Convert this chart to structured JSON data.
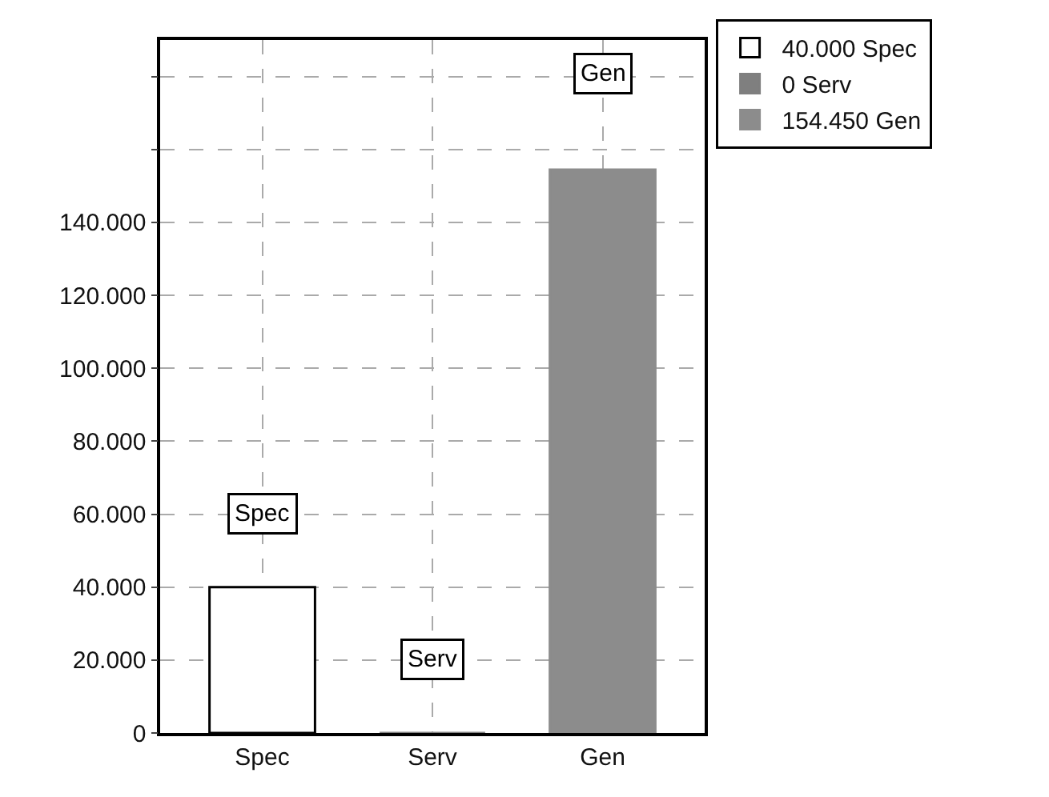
{
  "chart_data": {
    "type": "bar",
    "categories": [
      "Spec",
      "Serv",
      "Gen"
    ],
    "series": [
      {
        "name": "40.000 Spec",
        "color": "#ffffff",
        "values": [
          40000,
          null,
          null
        ]
      },
      {
        "name": "0 Serv",
        "color": "#7f7f7f",
        "values": [
          null,
          0,
          null
        ]
      },
      {
        "name": "154.450 Gen",
        "color": "#8c8c8c",
        "values": [
          null,
          null,
          154450
        ]
      }
    ],
    "ylim": [
      0,
      190000
    ],
    "yticks": [
      0,
      {
        "value": 20000,
        "label": "20.000"
      },
      {
        "value": 40000,
        "label": "40.000"
      },
      {
        "value": 60000,
        "label": "60.000"
      },
      {
        "value": 80000,
        "label": "80.000"
      },
      {
        "value": 100000,
        "label": "100.000"
      },
      {
        "value": 120000,
        "label": "120.000"
      },
      {
        "value": 140000,
        "label": "140.000"
      },
      {
        "value": 160000,
        "label": null
      },
      {
        "value": 180000,
        "label": null
      }
    ],
    "annotations": [
      {
        "text": "Spec",
        "x": "Spec",
        "y": 60000
      },
      {
        "text": "Serv",
        "x": "Serv",
        "y": 20000
      },
      {
        "text": "Gen",
        "x": "Gen",
        "y": 181000
      }
    ],
    "grid": true,
    "legend": "top right"
  }
}
